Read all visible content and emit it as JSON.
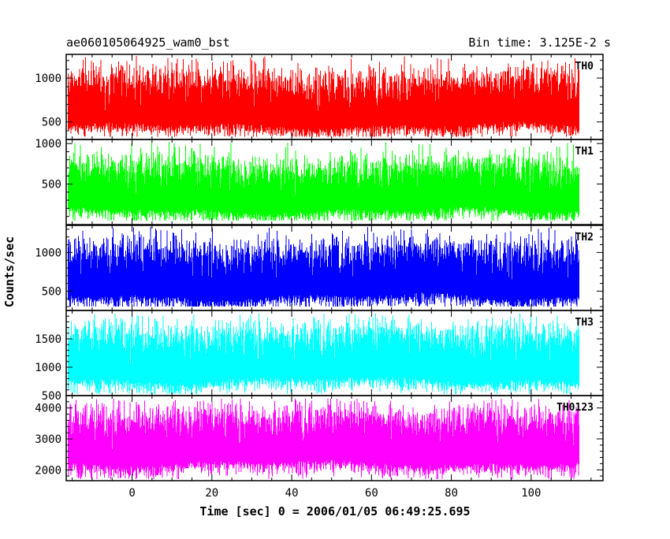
{
  "header": {
    "left_title": "ae060105064925_wam0_bst",
    "right_title": "Bin time: 3.125E-2 s"
  },
  "chart_data": {
    "type": "line",
    "title": "ae060105064925_wam0_bst",
    "subtitle": "Bin time: 3.125E-2 s",
    "xlabel": "Time [sec] 0 = 2006/01/05 06:49:25.695",
    "ylabel": "Counts/sec",
    "xlim": [
      -16.5,
      118
    ],
    "data_range": [
      -16,
      112
    ],
    "x_ticks": [
      0,
      20,
      40,
      60,
      80,
      100
    ],
    "x_tick_labels": [
      "0",
      "20",
      "40",
      "60",
      "80",
      "100"
    ],
    "grid": false,
    "series": [
      {
        "name": "TH0",
        "color": "#ff0000",
        "ylim": [
          300,
          1270
        ],
        "y_ticks": [
          500,
          1000
        ],
        "y_tick_labels": [
          "500",
          "1000"
        ],
        "baseline_min": 330,
        "floor_typical": 430,
        "mean": 690,
        "peak_typical": 1030,
        "peak_max": 1250
      },
      {
        "name": "TH1",
        "color": "#00ff00",
        "ylim": [
          0,
          1050
        ],
        "y_ticks": [
          500,
          1000
        ],
        "y_tick_labels": [
          "500",
          "1000"
        ],
        "baseline_min": 50,
        "floor_typical": 150,
        "mean": 420,
        "peak_typical": 780,
        "peak_max": 1020
      },
      {
        "name": "TH2",
        "color": "#0000ff",
        "ylim": [
          250,
          1350
        ],
        "y_ticks": [
          500,
          1000
        ],
        "y_tick_labels": [
          "500",
          "1000"
        ],
        "baseline_min": 300,
        "floor_typical": 400,
        "mean": 700,
        "peak_typical": 1100,
        "peak_max": 1330
      },
      {
        "name": "TH3",
        "color": "#00ffff",
        "ylim": [
          500,
          2000
        ],
        "y_ticks": [
          500,
          1000,
          1500
        ],
        "y_tick_labels": [
          "500",
          "1000",
          "1500"
        ],
        "baseline_min": 530,
        "floor_typical": 700,
        "mean": 1150,
        "peak_typical": 1650,
        "peak_max": 1950
      },
      {
        "name": "TH0123",
        "color": "#ff00ff",
        "ylim": [
          1650,
          4400
        ],
        "y_ticks": [
          2000,
          3000,
          4000
        ],
        "y_tick_labels": [
          "2000",
          "3000",
          "4000"
        ],
        "baseline_min": 1700,
        "floor_typical": 2050,
        "mean": 2900,
        "peak_typical": 3800,
        "peak_max": 4300
      }
    ]
  }
}
